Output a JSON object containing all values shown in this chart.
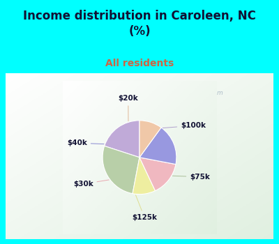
{
  "title": "Income distribution in Caroleen, NC\n(%)",
  "subtitle": "All residents",
  "title_color": "#111133",
  "subtitle_color": "#cc6644",
  "labels": [
    "$100k",
    "$75k",
    "$125k",
    "$30k",
    "$40k",
    "$20k"
  ],
  "values": [
    20,
    27,
    10,
    15,
    18,
    10
  ],
  "colors": [
    "#c0aad8",
    "#b8cfa8",
    "#eeeea0",
    "#f0b8c0",
    "#9898e0",
    "#f0c8a8"
  ],
  "line_colors": [
    "#b0a0cc",
    "#aabf98",
    "#dddd90",
    "#e8a8b0",
    "#8888d0",
    "#e0b898"
  ],
  "watermark": "  City-Data.com",
  "figsize": [
    4.0,
    3.5
  ],
  "dpi": 100,
  "cyan_bg": "#00ffff",
  "chart_bg": "#e8f4ec",
  "title_fontsize": 12,
  "subtitle_fontsize": 10
}
